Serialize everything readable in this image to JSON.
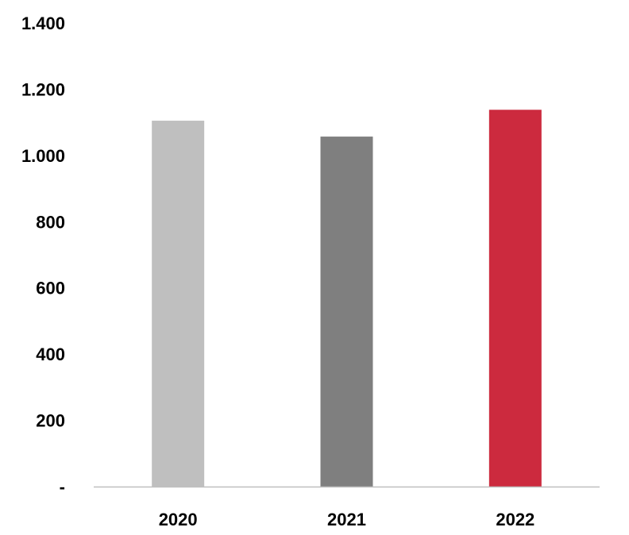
{
  "chart_data": {
    "type": "bar",
    "categories": [
      "2020",
      "2021",
      "2022"
    ],
    "values": [
      1105,
      1057,
      1138
    ],
    "colors": [
      "#bfbfbf",
      "#7f7f7f",
      "#cc2a3e"
    ],
    "ylim": [
      0,
      1400
    ],
    "yticks": [
      0,
      200,
      400,
      600,
      800,
      1000,
      1200,
      1400
    ],
    "ytick_labels": [
      "-",
      "200",
      "400",
      "600",
      "800",
      "1.000",
      "1.200",
      "1.400"
    ],
    "axis_color": "#bfbfbf",
    "grid": false,
    "legend": "none",
    "title": "",
    "xlabel": "",
    "ylabel": ""
  }
}
